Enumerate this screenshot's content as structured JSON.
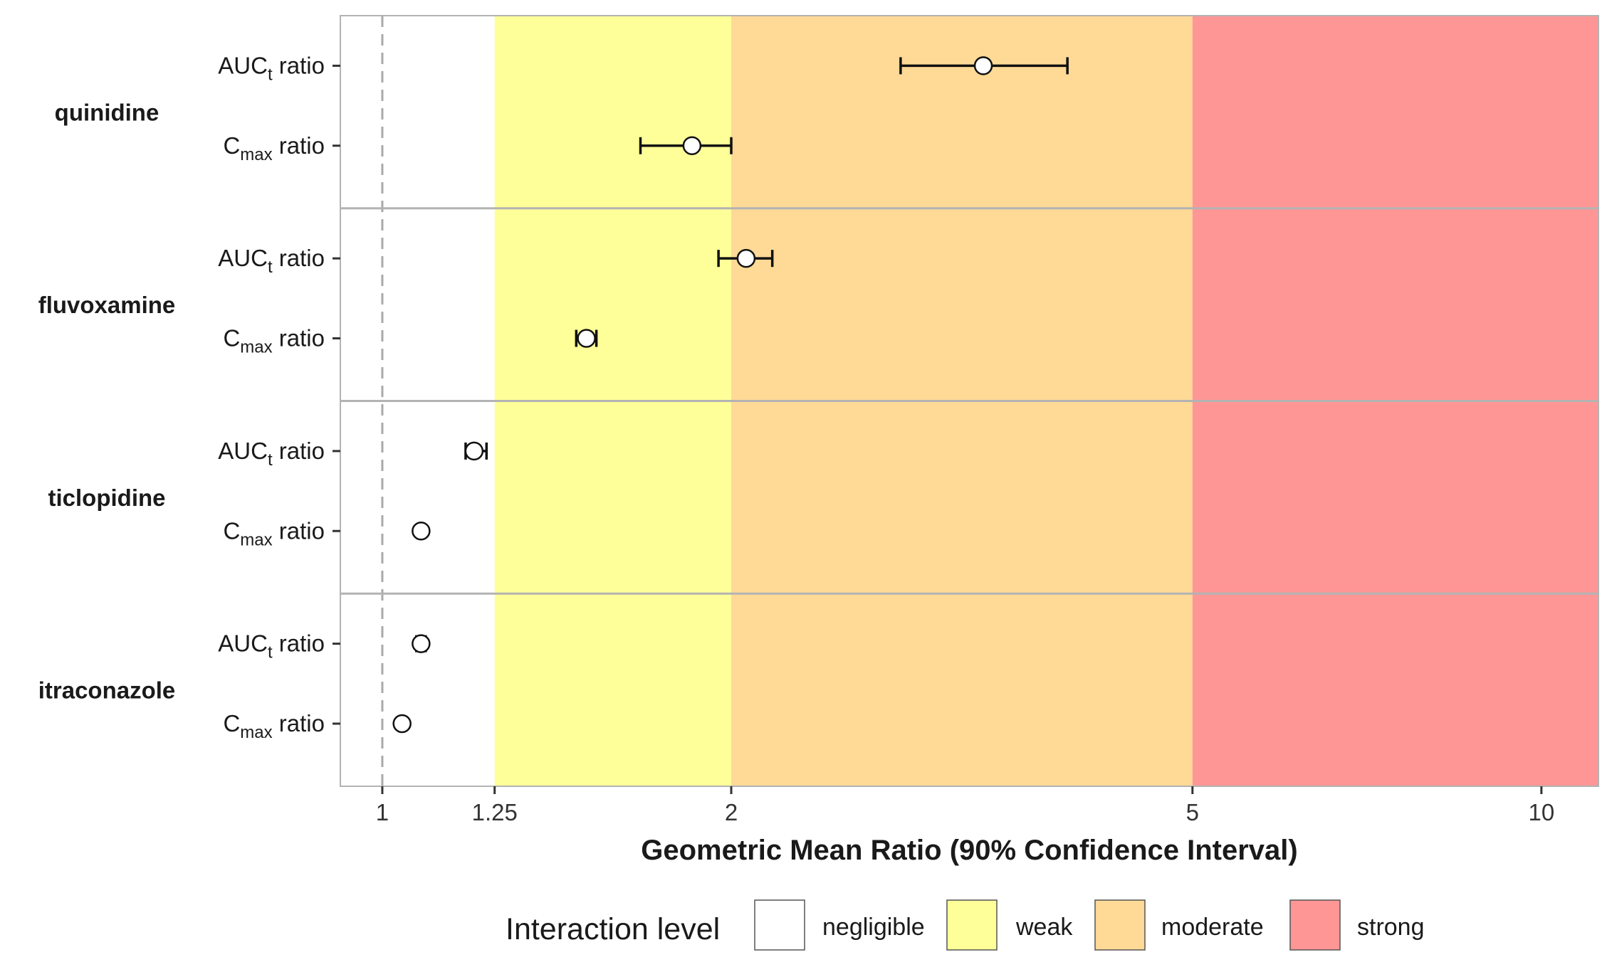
{
  "chart_data": {
    "type": "forest",
    "xlabel": "Geometric Mean Ratio (90% Confidence Interval)",
    "x_scale": "log",
    "xlim": [
      0.92,
      11.2
    ],
    "x_ticks": [
      {
        "value": 1,
        "label": "1"
      },
      {
        "value": 1.25,
        "label": "1.25"
      },
      {
        "value": 2,
        "label": "2"
      },
      {
        "value": 5,
        "label": "5"
      },
      {
        "value": 10,
        "label": "10"
      }
    ],
    "reference_line": 1,
    "grid": false,
    "legend": {
      "title": "Interaction level",
      "placement": "bottom",
      "entries": [
        {
          "key": "negligible",
          "label": "negligible",
          "color": "#ffffff",
          "from": 0.92,
          "to": 1.25
        },
        {
          "key": "weak",
          "label": "weak",
          "color": "#ffff99",
          "from": 1.25,
          "to": 2
        },
        {
          "key": "moderate",
          "label": "moderate",
          "color": "#ffd996",
          "from": 2,
          "to": 5
        },
        {
          "key": "strong",
          "label": "strong",
          "color": "#ff9696",
          "from": 5,
          "to": 11.2
        }
      ]
    },
    "groups": [
      {
        "name": "quinidine",
        "rows": [
          {
            "metric": "AUC",
            "sub": "t",
            "suffix": " ratio",
            "estimate": 3.3,
            "ci_low": 2.8,
            "ci_high": 3.9
          },
          {
            "metric": "C",
            "sub": "max",
            "suffix": " ratio",
            "estimate": 1.85,
            "ci_low": 1.67,
            "ci_high": 2.0
          }
        ]
      },
      {
        "name": "fluvoxamine",
        "rows": [
          {
            "metric": "AUC",
            "sub": "t",
            "suffix": " ratio",
            "estimate": 2.06,
            "ci_low": 1.95,
            "ci_high": 2.17
          },
          {
            "metric": "C",
            "sub": "max",
            "suffix": " ratio",
            "estimate": 1.5,
            "ci_low": 1.47,
            "ci_high": 1.53
          }
        ]
      },
      {
        "name": "ticlopidine",
        "rows": [
          {
            "metric": "AUC",
            "sub": "t",
            "suffix": " ratio",
            "estimate": 1.2,
            "ci_low": 1.18,
            "ci_high": 1.23
          },
          {
            "metric": "C",
            "sub": "max",
            "suffix": " ratio",
            "estimate": 1.08,
            "ci_low": 1.08,
            "ci_high": 1.08
          }
        ]
      },
      {
        "name": "itraconazole",
        "rows": [
          {
            "metric": "AUC",
            "sub": "t",
            "suffix": " ratio",
            "estimate": 1.08,
            "ci_low": 1.07,
            "ci_high": 1.09
          },
          {
            "metric": "C",
            "sub": "max",
            "suffix": " ratio",
            "estimate": 1.04,
            "ci_low": 1.04,
            "ci_high": 1.04
          }
        ]
      }
    ]
  }
}
